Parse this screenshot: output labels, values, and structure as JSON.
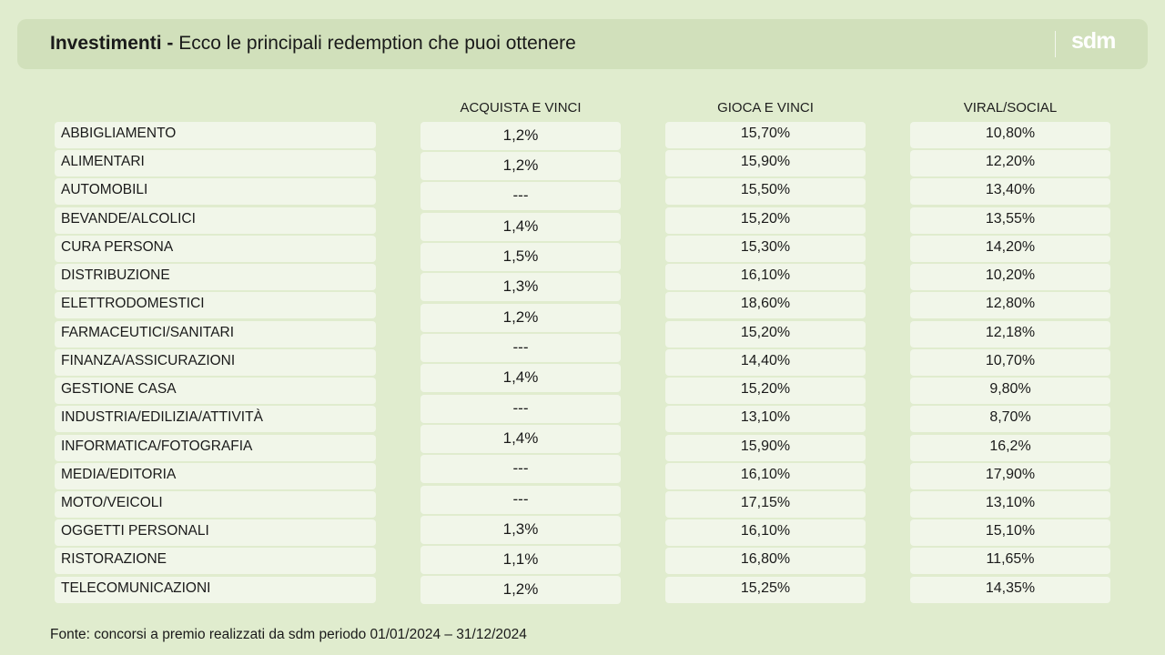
{
  "header": {
    "title_bold": "Investimenti -",
    "title_rest": " Ecco le principali redemption che puoi ottenere",
    "logo": "sdm"
  },
  "columns": [
    "ACQUISTA E VINCI",
    "GIOCA E VINCI",
    "VIRAL/SOCIAL"
  ],
  "rows": [
    {
      "label": "ABBIGLIAMENTO",
      "acquista": "1,2%",
      "gioca": "15,70%",
      "viral": "10,80%"
    },
    {
      "label": "ALIMENTARI",
      "acquista": "1,2%",
      "gioca": "15,90%",
      "viral": "12,20%"
    },
    {
      "label": "AUTOMOBILI",
      "acquista": "---",
      "gioca": "15,50%",
      "viral": "13,40%"
    },
    {
      "label": "BEVANDE/ALCOLICI",
      "acquista": "1,4%",
      "gioca": "15,20%",
      "viral": "13,55%"
    },
    {
      "label": "CURA PERSONA",
      "acquista": "1,5%",
      "gioca": "15,30%",
      "viral": "14,20%"
    },
    {
      "label": "DISTRIBUZIONE",
      "acquista": "1,3%",
      "gioca": "16,10%",
      "viral": "10,20%"
    },
    {
      "label": "ELETTRODOMESTICI",
      "acquista": "1,2%",
      "gioca": "18,60%",
      "viral": "12,80%"
    },
    {
      "label": "FARMACEUTICI/SANITARI",
      "acquista": "---",
      "gioca": "15,20%",
      "viral": "12,18%"
    },
    {
      "label": "FINANZA/ASSICURAZIONI",
      "acquista": "1,4%",
      "gioca": "14,40%",
      "viral": "10,70%"
    },
    {
      "label": "GESTIONE CASA",
      "acquista": "---",
      "gioca": "15,20%",
      "viral": "9,80%"
    },
    {
      "label": "INDUSTRIA/EDILIZIA/ATTIVITÀ",
      "acquista": "1,4%",
      "gioca": "13,10%",
      "viral": "8,70%"
    },
    {
      "label": "INFORMATICA/FOTOGRAFIA",
      "acquista": "---",
      "gioca": "15,90%",
      "viral": "16,2%"
    },
    {
      "label": "MEDIA/EDITORIA",
      "acquista": "---",
      "gioca": "16,10%",
      "viral": "17,90%"
    },
    {
      "label": "MOTO/VEICOLI",
      "acquista": "1,3%",
      "gioca": "17,15%",
      "viral": "13,10%"
    },
    {
      "label": "OGGETTI PERSONALI",
      "acquista": "1,1%",
      "gioca": "16,10%",
      "viral": "15,10%"
    },
    {
      "label": "RISTORAZIONE",
      "acquista": "1,2%",
      "gioca": "16,80%",
      "viral": "11,65%"
    },
    {
      "label": "TELECOMUNICAZIONI",
      "acquista": "",
      "gioca": "15,25%",
      "viral": "14,35%"
    }
  ],
  "footnote": "Fonte: concorsi a premio realizzati da sdm periodo 01/01/2024 – 31/12/2024"
}
